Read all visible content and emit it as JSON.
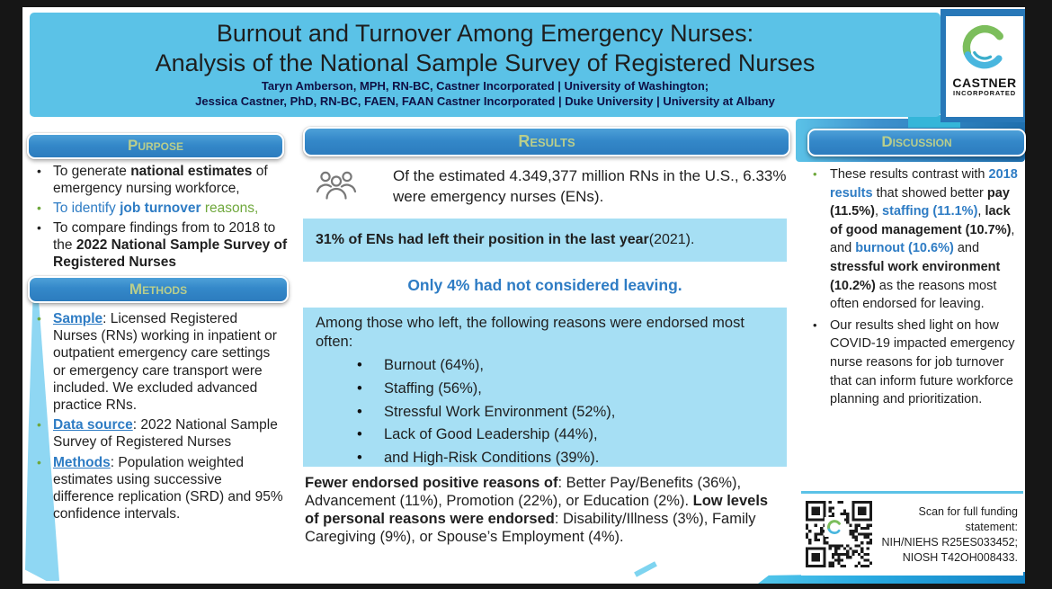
{
  "colors": {
    "link": "#2E7CC4",
    "green": "#6FA83C",
    "title_band": "#5BC2E7",
    "header_button": "#3488C9",
    "header_text": "#B9CE8C",
    "highlight_box": "#A6DFF4",
    "accent_cyan": "#29ABE2"
  },
  "title": {
    "line1": "Burnout and Turnover Among Emergency Nurses:",
    "line2": "Analysis of the National Sample Survey of Registered Nurses",
    "authors1": "Taryn Amberson, MPH, RN-BC, Castner Incorporated | University of Washington;",
    "authors2": "Jessica Castner, PhD, RN-BC, FAEN, FAAN Castner Incorporated | Duke University | University at Albany"
  },
  "logo": {
    "brand": "CASTNER",
    "suffix": "INCORPORATED"
  },
  "purpose": {
    "header": "Purpose",
    "bullets": [
      {
        "seg": [
          {
            "t": "To generate "
          },
          {
            "t": "national estimates",
            "b": true
          },
          {
            "t": " of emergency nursing workforce,"
          }
        ]
      },
      {
        "seg": [
          {
            "t": "To identify ",
            "c": "link"
          },
          {
            "t": "job turnover",
            "b": true,
            "c": "link"
          },
          {
            "t": " reasons,",
            "c": "green"
          }
        ]
      },
      {
        "seg": [
          {
            "t": "To compare findings from to 2018 to the "
          },
          {
            "t": "2022 National Sample Survey of Registered Nurses",
            "b": true
          }
        ]
      }
    ]
  },
  "methods": {
    "header": "Methods",
    "bullets": [
      {
        "seg": [
          {
            "t": "Sample",
            "b": true,
            "u": true,
            "c": "link"
          },
          {
            "t": ": Licensed Registered Nurses (RNs) working in inpatient or outpatient emergency care settings or emergency care transport were included. We excluded advanced practice RNs."
          }
        ]
      },
      {
        "seg": [
          {
            "t": "Data source",
            "b": true,
            "u": true,
            "c": "link"
          },
          {
            "t": ": 2022 National Sample Survey of Registered Nurses"
          }
        ]
      },
      {
        "seg": [
          {
            "t": "Methods",
            "b": true,
            "u": true,
            "c": "link"
          },
          {
            "t": ": Population weighted estimates using successive difference replication (SRD) and 95% confidence intervals."
          }
        ]
      }
    ]
  },
  "results": {
    "header": "Results",
    "population_line": "Of the estimated 4.349,377 million RNs in the U.S., 6.33% were emergency nurses (ENs).",
    "left_box": [
      {
        "t": "31% of ENs had left their position in the last year",
        "b": true
      },
      {
        "t": " (2021)."
      }
    ],
    "only_line": "Only 4% had not considered leaving.",
    "reasons_intro": "Among those who left, the following reasons were endorsed most often:",
    "reasons": [
      "Burnout (64%),",
      "Staffing (56%),",
      "Stressful Work Environment (52%),",
      "Lack of Good Leadership (44%),",
      "and High-Risk Conditions (39%)."
    ],
    "bottom": [
      {
        "t": "Fewer endorsed positive reasons of",
        "b": true
      },
      {
        "t": ": Better Pay/Benefits (36%), Advancement (11%), Promotion (22%), or Education (2%). "
      },
      {
        "t": "Low levels of personal reasons were endorsed",
        "b": true
      },
      {
        "t": ": Disability/Illness (3%), Family Caregiving (9%), or Spouse’s Employment (4%)."
      }
    ]
  },
  "discussion": {
    "header": "Discussion",
    "bullets": [
      {
        "seg": [
          {
            "t": "These results contrast with "
          },
          {
            "t": "2018 results",
            "b": true,
            "c": "link"
          },
          {
            "t": " that showed better "
          },
          {
            "t": "pay (11.5%)",
            "b": true
          },
          {
            "t": ", "
          },
          {
            "t": "staffing (11.1%)",
            "b": true,
            "c": "link"
          },
          {
            "t": ", "
          },
          {
            "t": "lack of good management (10.7%)",
            "b": true
          },
          {
            "t": ", and "
          },
          {
            "t": "burnout (10.6%)",
            "b": true,
            "c": "link"
          },
          {
            "t": " and "
          },
          {
            "t": "stressful work environment (10.2%)",
            "b": true
          },
          {
            "t": " as the reasons most often endorsed for leaving."
          }
        ]
      },
      {
        "seg": [
          {
            "t": "Our results shed light on how COVID-19 impacted emergency nurse reasons for job turnover that can inform future workforce planning and prioritization."
          }
        ]
      }
    ]
  },
  "funding": {
    "lines": [
      "Scan for full funding",
      "statement:",
      "NIH/NIEHS R25ES033452;",
      "NIOSH T42OH008433."
    ]
  }
}
